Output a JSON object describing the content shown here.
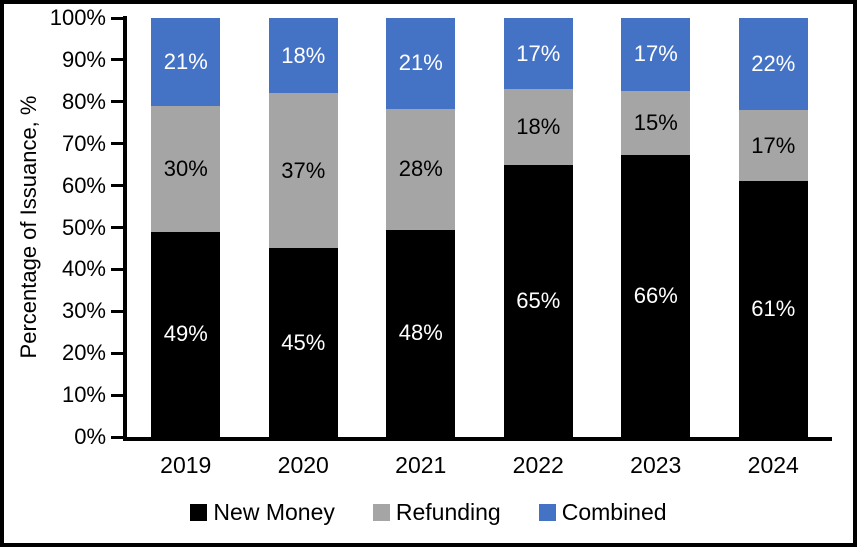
{
  "chart_data": {
    "type": "bar",
    "stacked": true,
    "title": "",
    "xlabel": "",
    "ylabel": "Percentage of Issuance, %",
    "ylim": [
      0,
      100
    ],
    "grid": false,
    "legend_position": "bottom",
    "value_suffix": "%",
    "categories": [
      "2019",
      "2020",
      "2021",
      "2022",
      "2023",
      "2024"
    ],
    "series": [
      {
        "name": "New Money",
        "color": "#000000",
        "label_color": "#ffffff",
        "values": [
          49,
          45,
          48,
          65,
          66,
          61
        ]
      },
      {
        "name": "Refunding",
        "color": "#A5A5A5",
        "label_color": "#000000",
        "values": [
          30,
          37,
          28,
          18,
          15,
          17
        ]
      },
      {
        "name": "Combined",
        "color": "#4472C4",
        "label_color": "#ffffff",
        "values": [
          21,
          18,
          21,
          17,
          17,
          22
        ]
      }
    ],
    "yticks": [
      "100%",
      "90%",
      "80%",
      "70%",
      "60%",
      "50%",
      "40%",
      "30%",
      "20%",
      "10%",
      "0%"
    ]
  }
}
